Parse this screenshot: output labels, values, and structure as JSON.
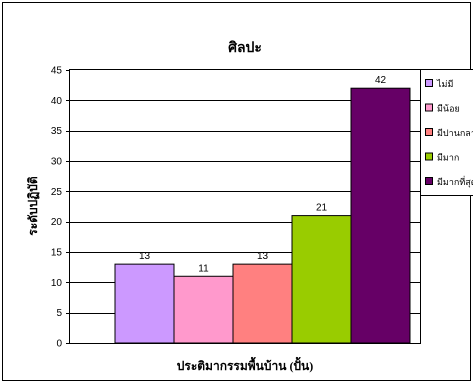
{
  "chart_data": {
    "type": "bar",
    "title": "ศิลปะ",
    "xlabel": "ประติมากรรมพื้นบ้าน (ปั้น)",
    "ylabel": "ระดับปฏิบัติ",
    "ylim": [
      0,
      45
    ],
    "yticks": [
      0,
      5,
      10,
      15,
      20,
      25,
      30,
      35,
      40,
      45
    ],
    "grid": true,
    "legend_position": "right",
    "series": [
      {
        "name": "ไม่มี",
        "value": 13,
        "color": "#cc99ff"
      },
      {
        "name": "มีน้อย",
        "value": 11,
        "color": "#ff99cc"
      },
      {
        "name": "มีปานกลาง",
        "value": 13,
        "color": "#ff8080"
      },
      {
        "name": "มีมาก",
        "value": 21,
        "color": "#99cc00"
      },
      {
        "name": "มีมากที่สุด",
        "value": 42,
        "color": "#660066"
      }
    ]
  }
}
